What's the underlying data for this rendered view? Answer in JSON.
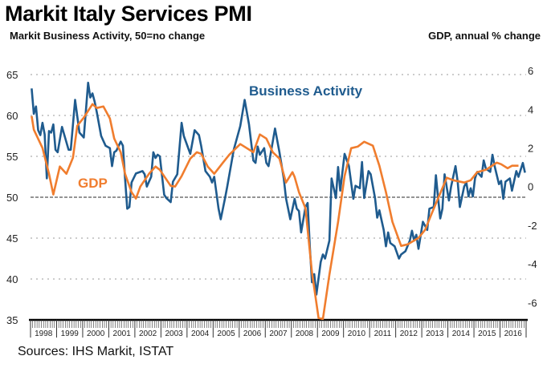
{
  "title": "Markit Italy Services PMI",
  "left_axis_title": "Markit Business Activity, 50=no change",
  "right_axis_title": "GDP, annual % change",
  "source": "Sources: IHS Markit, ISTAT",
  "chart_data": {
    "type": "line",
    "title": "Markit Italy Services PMI",
    "ylabel_left": "Markit Business Activity, 50=no change",
    "ylabel_right": "GDP, annual % change",
    "ylim_left": [
      35,
      65
    ],
    "yticks_left": [
      35,
      40,
      45,
      50,
      55,
      60,
      65
    ],
    "ylim_right": [
      -6.9,
      5.8
    ],
    "yticks_right": [
      -6,
      -4,
      -2,
      0,
      2,
      4,
      6
    ],
    "x_categories": [
      "1998",
      "1999",
      "2000",
      "2001",
      "2002",
      "2003",
      "2004",
      "2005",
      "2006",
      "2007",
      "2008",
      "2009",
      "2010",
      "2011",
      "2012",
      "2013",
      "2014",
      "2015",
      "2016"
    ],
    "grid": "horizontal dotted",
    "reference_line": 50,
    "legend": "inline labels",
    "series": [
      {
        "name": "Business Activity",
        "axis": "left",
        "color": "#1F5B8E",
        "points": [
          [
            "1998-01",
            63.3
          ],
          [
            "1998-02",
            60.2
          ],
          [
            "1998-03",
            61.1
          ],
          [
            "1998-04",
            58.2
          ],
          [
            "1998-05",
            57.6
          ],
          [
            "1998-06",
            59.1
          ],
          [
            "1998-07",
            57.7
          ],
          [
            "1998-08",
            52.3
          ],
          [
            "1998-09",
            58.1
          ],
          [
            "1998-10",
            57.9
          ],
          [
            "1998-11",
            58.9
          ],
          [
            "1998-12",
            55.8
          ],
          [
            "1999-01",
            55.5
          ],
          [
            "1999-03",
            58.6
          ],
          [
            "1999-06",
            55.8
          ],
          [
            "1999-07",
            55.8
          ],
          [
            "1999-09",
            61.9
          ],
          [
            "1999-11",
            57.9
          ],
          [
            "2000-01",
            57.3
          ],
          [
            "2000-03",
            64.0
          ],
          [
            "2000-04",
            62.2
          ],
          [
            "2000-05",
            62.7
          ],
          [
            "2000-06",
            61.7
          ],
          [
            "2000-07",
            60.4
          ],
          [
            "2000-09",
            57.5
          ],
          [
            "2000-11",
            56.3
          ],
          [
            "2001-01",
            56.0
          ],
          [
            "2001-02",
            53.8
          ],
          [
            "2001-03",
            55.5
          ],
          [
            "2001-04",
            55.7
          ],
          [
            "2001-06",
            56.8
          ],
          [
            "2001-07",
            56.3
          ],
          [
            "2001-08",
            52.3
          ],
          [
            "2001-09",
            48.6
          ],
          [
            "2001-10",
            48.8
          ],
          [
            "2001-11",
            51.8
          ],
          [
            "2002-01",
            52.9
          ],
          [
            "2002-04",
            53.2
          ],
          [
            "2002-05",
            52.8
          ],
          [
            "2002-06",
            51.3
          ],
          [
            "2002-08",
            52.5
          ],
          [
            "2002-09",
            55.5
          ],
          [
            "2002-10",
            54.8
          ],
          [
            "2002-11",
            55.2
          ],
          [
            "2002-12",
            55.0
          ],
          [
            "2003-02",
            50.3
          ],
          [
            "2003-03",
            49.9
          ],
          [
            "2003-05",
            49.4
          ],
          [
            "2003-06",
            51.9
          ],
          [
            "2003-08",
            52.8
          ],
          [
            "2003-10",
            59.1
          ],
          [
            "2003-11",
            57.5
          ],
          [
            "2004-02",
            55.3
          ],
          [
            "2004-04",
            58.2
          ],
          [
            "2004-06",
            57.6
          ],
          [
            "2004-07",
            56.3
          ],
          [
            "2004-09",
            53.2
          ],
          [
            "2004-11",
            52.5
          ],
          [
            "2004-12",
            51.8
          ],
          [
            "2005-01",
            52.5
          ],
          [
            "2005-03",
            48.6
          ],
          [
            "2005-04",
            47.3
          ],
          [
            "2005-06",
            49.9
          ],
          [
            "2005-07",
            51.3
          ],
          [
            "2005-10",
            55.8
          ],
          [
            "2006-01",
            58.7
          ],
          [
            "2006-03",
            61.9
          ],
          [
            "2006-05",
            58.9
          ],
          [
            "2006-07",
            54.5
          ],
          [
            "2006-08",
            54.2
          ],
          [
            "2006-09",
            56.2
          ],
          [
            "2006-10",
            55.2
          ],
          [
            "2006-12",
            56.0
          ],
          [
            "2007-01",
            54.2
          ],
          [
            "2007-02",
            53.8
          ],
          [
            "2007-05",
            58.4
          ],
          [
            "2007-07",
            55.5
          ],
          [
            "2007-09",
            52.3
          ],
          [
            "2007-10",
            49.9
          ],
          [
            "2007-12",
            47.3
          ],
          [
            "2008-02",
            49.8
          ],
          [
            "2008-03",
            48.6
          ],
          [
            "2008-04",
            48.3
          ],
          [
            "2008-05",
            45.7
          ],
          [
            "2008-07",
            48.8
          ],
          [
            "2008-08",
            49.3
          ],
          [
            "2008-09",
            44.0
          ],
          [
            "2008-10",
            39.6
          ],
          [
            "2008-11",
            40.6
          ],
          [
            "2008-12",
            38.1
          ],
          [
            "2009-02",
            42.1
          ],
          [
            "2009-03",
            43.0
          ],
          [
            "2009-04",
            42.5
          ],
          [
            "2009-06",
            44.7
          ],
          [
            "2009-07",
            52.3
          ],
          [
            "2009-09",
            49.9
          ],
          [
            "2009-10",
            53.7
          ],
          [
            "2009-11",
            50.8
          ],
          [
            "2010-01",
            55.3
          ],
          [
            "2010-03",
            53.8
          ],
          [
            "2010-05",
            49.8
          ],
          [
            "2010-06",
            51.4
          ],
          [
            "2010-08",
            51.1
          ],
          [
            "2010-09",
            54.3
          ],
          [
            "2010-10",
            49.9
          ],
          [
            "2010-12",
            53.2
          ],
          [
            "2011-01",
            52.8
          ],
          [
            "2011-03",
            49.9
          ],
          [
            "2011-04",
            47.5
          ],
          [
            "2011-05",
            48.4
          ],
          [
            "2011-07",
            46.0
          ],
          [
            "2011-08",
            44.0
          ],
          [
            "2011-09",
            45.7
          ],
          [
            "2011-10",
            44.4
          ],
          [
            "2011-12",
            44.0
          ],
          [
            "2012-02",
            42.5
          ],
          [
            "2012-03",
            43.0
          ],
          [
            "2012-05",
            43.4
          ],
          [
            "2012-07",
            44.7
          ],
          [
            "2012-08",
            45.9
          ],
          [
            "2012-09",
            44.7
          ],
          [
            "2012-10",
            45.4
          ],
          [
            "2012-11",
            43.7
          ],
          [
            "2013-01",
            47.0
          ],
          [
            "2013-03",
            46.0
          ],
          [
            "2013-04",
            48.6
          ],
          [
            "2013-06",
            48.8
          ],
          [
            "2013-07",
            52.7
          ],
          [
            "2013-08",
            49.9
          ],
          [
            "2013-09",
            47.4
          ],
          [
            "2013-10",
            48.6
          ],
          [
            "2013-11",
            52.8
          ],
          [
            "2014-01",
            49.6
          ],
          [
            "2014-02",
            51.3
          ],
          [
            "2014-04",
            53.8
          ],
          [
            "2014-05",
            51.9
          ],
          [
            "2014-06",
            48.8
          ],
          [
            "2014-08",
            51.3
          ],
          [
            "2014-09",
            51.8
          ],
          [
            "2014-10",
            50.1
          ],
          [
            "2014-11",
            51.1
          ],
          [
            "2014-12",
            50.1
          ],
          [
            "2015-01",
            52.3
          ],
          [
            "2015-02",
            53.1
          ],
          [
            "2015-04",
            52.5
          ],
          [
            "2015-05",
            54.5
          ],
          [
            "2015-06",
            53.5
          ],
          [
            "2015-08",
            53.1
          ],
          [
            "2015-09",
            55.2
          ],
          [
            "2015-10",
            53.8
          ],
          [
            "2015-12",
            51.6
          ],
          [
            "2016-01",
            52.0
          ],
          [
            "2016-02",
            49.8
          ],
          [
            "2016-03",
            51.9
          ],
          [
            "2016-05",
            52.3
          ],
          [
            "2016-06",
            50.8
          ],
          [
            "2016-08",
            53.2
          ],
          [
            "2016-09",
            52.5
          ],
          [
            "2016-11",
            54.2
          ],
          [
            "2016-12",
            53.0
          ]
        ]
      },
      {
        "name": "GDP",
        "axis": "right",
        "color": "#F07D2E",
        "points": [
          [
            "1998-01",
            3.65
          ],
          [
            "1998-02",
            2.95
          ],
          [
            "1998-06",
            2.0
          ],
          [
            "1998-09",
            0.66
          ],
          [
            "1998-11",
            -0.41
          ],
          [
            "1999-02",
            1.04
          ],
          [
            "1999-05",
            0.66
          ],
          [
            "1999-08",
            1.49
          ],
          [
            "1999-10",
            3.15
          ],
          [
            "2000-01",
            3.57
          ],
          [
            "2000-05",
            4.27
          ],
          [
            "2000-07",
            4.07
          ],
          [
            "2000-10",
            4.15
          ],
          [
            "2001-01",
            3.53
          ],
          [
            "2001-03",
            2.49
          ],
          [
            "2001-06",
            1.78
          ],
          [
            "2001-08",
            0.66
          ],
          [
            "2001-11",
            -0.29
          ],
          [
            "2002-01",
            -0.62
          ],
          [
            "2002-03",
            0.0
          ],
          [
            "2002-07",
            0.66
          ],
          [
            "2002-10",
            1.04
          ],
          [
            "2002-12",
            0.87
          ],
          [
            "2003-05",
            0.04
          ],
          [
            "2003-07",
            0.0
          ],
          [
            "2003-10",
            0.54
          ],
          [
            "2004-02",
            1.45
          ],
          [
            "2004-05",
            1.78
          ],
          [
            "2004-07",
            1.7
          ],
          [
            "2004-10",
            1.04
          ],
          [
            "2005-01",
            0.66
          ],
          [
            "2005-05",
            1.24
          ],
          [
            "2005-08",
            1.66
          ],
          [
            "2006-01",
            2.2
          ],
          [
            "2006-07",
            1.78
          ],
          [
            "2006-10",
            2.7
          ],
          [
            "2007-01",
            2.49
          ],
          [
            "2007-04",
            1.78
          ],
          [
            "2007-07",
            1.45
          ],
          [
            "2007-10",
            0.21
          ],
          [
            "2008-01",
            0.75
          ],
          [
            "2008-02",
            0.5
          ],
          [
            "2008-04",
            -0.29
          ],
          [
            "2008-07",
            -1.12
          ],
          [
            "2008-10",
            -4.44
          ],
          [
            "2009-01",
            -6.8
          ],
          [
            "2009-03",
            -6.85
          ],
          [
            "2009-06",
            -4.56
          ],
          [
            "2009-10",
            -1.83
          ],
          [
            "2010-01",
            0.54
          ],
          [
            "2010-04",
            1.99
          ],
          [
            "2010-07",
            2.07
          ],
          [
            "2010-10",
            2.32
          ],
          [
            "2011-02",
            2.12
          ],
          [
            "2011-05",
            1.08
          ],
          [
            "2011-08",
            -0.29
          ],
          [
            "2011-11",
            -1.83
          ],
          [
            "2012-03",
            -3.07
          ],
          [
            "2012-06",
            -2.99
          ],
          [
            "2012-11",
            -2.66
          ],
          [
            "2013-02",
            -2.24
          ],
          [
            "2013-05",
            -1.41
          ],
          [
            "2013-12",
            0.46
          ],
          [
            "2014-03",
            0.33
          ],
          [
            "2014-08",
            0.21
          ],
          [
            "2014-11",
            0.33
          ],
          [
            "2015-02",
            0.75
          ],
          [
            "2015-06",
            0.87
          ],
          [
            "2015-11",
            1.24
          ],
          [
            "2016-01",
            1.16
          ],
          [
            "2016-04",
            0.95
          ],
          [
            "2016-06",
            1.08
          ],
          [
            "2016-09",
            1.08
          ]
        ]
      }
    ]
  }
}
